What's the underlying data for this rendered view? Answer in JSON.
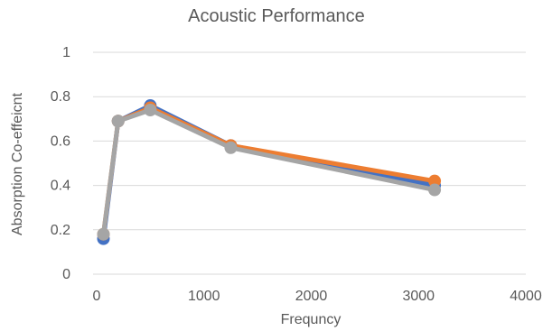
{
  "chart_data": {
    "type": "scatter",
    "title": "Acoustic Performance",
    "xlabel": "Frequncy",
    "ylabel": "Absorption Co-effeicnt",
    "xlim": [
      0,
      4000
    ],
    "ylim": [
      0,
      1
    ],
    "xticks": [
      0,
      1000,
      2000,
      3000,
      4000
    ],
    "yticks": [
      0,
      0.2,
      0.4,
      0.6,
      0.8,
      1
    ],
    "xtick_labels": [
      "0",
      "1000",
      "2000",
      "3000",
      "4000"
    ],
    "ytick_labels": [
      "0",
      "0.2",
      "0.4",
      "0.6",
      "0.8",
      "1"
    ],
    "grid": "horizontal",
    "legend": "none",
    "series": [
      {
        "color": "#4472C4",
        "x": [
          63,
          200,
          500,
          1250,
          3150
        ],
        "y": [
          0.16,
          0.69,
          0.76,
          0.58,
          0.4
        ]
      },
      {
        "color": "#ED7D31",
        "x": [
          63,
          200,
          500,
          1250,
          3150
        ],
        "y": [
          0.18,
          0.69,
          0.75,
          0.58,
          0.42
        ]
      },
      {
        "color": "#A5A5A5",
        "x": [
          63,
          200,
          500,
          1250,
          3150
        ],
        "y": [
          0.18,
          0.69,
          0.74,
          0.57,
          0.38
        ]
      }
    ]
  }
}
